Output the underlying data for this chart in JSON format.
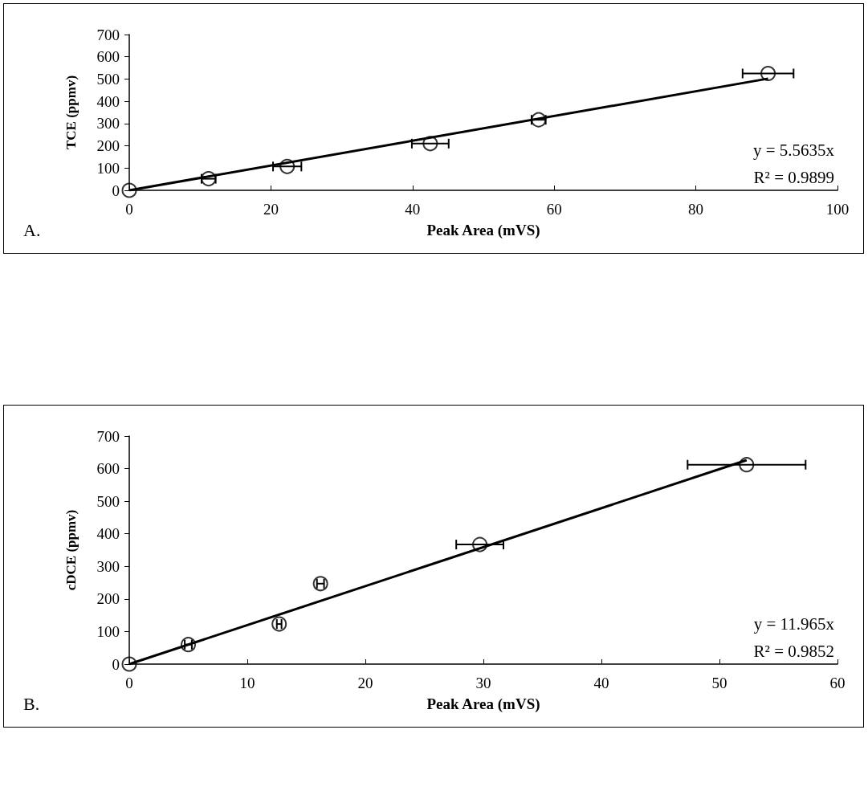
{
  "chart_data": [
    {
      "type": "scatter",
      "xlabel": "Peak Area (mVS)",
      "ylabel": "TCE (ppmv)",
      "xlim": [
        0,
        100
      ],
      "xticks": [
        0,
        20,
        40,
        60,
        80,
        100
      ],
      "ylim": [
        0,
        700
      ],
      "yticks": [
        0,
        100,
        200,
        300,
        400,
        500,
        600,
        700
      ],
      "grid": false,
      "marker": "circle",
      "annotations": [
        "y = 5.5635x",
        "R² = 0.9899",
        "A."
      ],
      "series": [
        {
          "color": "#000000",
          "x": [
            0,
            11.2,
            22.3,
            42.5,
            57.8,
            90.2
          ],
          "values": [
            0,
            52,
            107,
            210,
            317,
            525
          ],
          "xerrors": [
            null,
            1,
            2,
            2.6,
            1,
            3.6
          ]
        },
        {
          "type": "line",
          "color": "#000000",
          "marker": "none",
          "line_style": "solid",
          "x": [
            0,
            90.2
          ],
          "values": [
            0,
            502
          ]
        }
      ]
    },
    {
      "type": "scatter",
      "xlabel": "Peak Area (mVS)",
      "ylabel": "cDCE (ppmv)",
      "xlim": [
        0,
        60
      ],
      "xticks": [
        0,
        10,
        20,
        30,
        40,
        50,
        60
      ],
      "ylim": [
        0,
        700
      ],
      "yticks": [
        0,
        100,
        200,
        300,
        400,
        500,
        600,
        700
      ],
      "grid": false,
      "marker": "circle",
      "annotations": [
        "y = 11.965x",
        "R² = 0.9852",
        "B."
      ],
      "series": [
        {
          "color": "#000000",
          "x": [
            0,
            5.0,
            12.7,
            16.2,
            29.7,
            52.3
          ],
          "values": [
            0,
            60,
            123,
            247,
            367,
            612
          ],
          "xerrors": [
            null,
            0.3,
            0.2,
            0.3,
            2,
            5
          ]
        },
        {
          "type": "line",
          "color": "#000000",
          "marker": "none",
          "line_style": "solid",
          "x": [
            0,
            52.3
          ],
          "values": [
            0,
            626
          ]
        }
      ]
    }
  ]
}
